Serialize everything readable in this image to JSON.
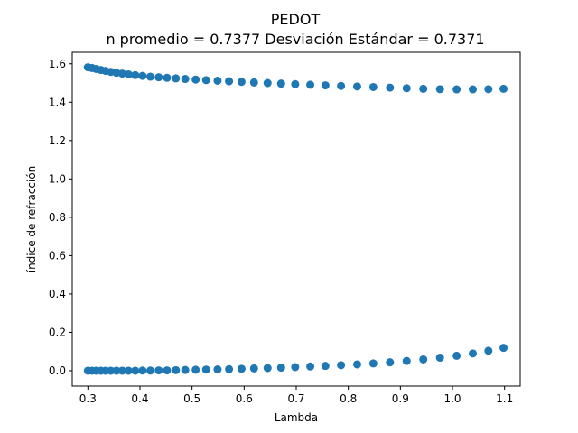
{
  "chart_data": {
    "type": "scatter",
    "title_line1": "PEDOT",
    "title_line2": "n promedio = 0.7377  Desviación Estándar = 0.7371",
    "xlabel": "Lambda",
    "ylabel": "índice de refracción",
    "xlim": [
      0.27,
      1.13
    ],
    "ylim": [
      -0.08,
      1.66
    ],
    "xticks": [
      0.3,
      0.4,
      0.5,
      0.6,
      0.7,
      0.8,
      0.9,
      1.0,
      1.1
    ],
    "xtick_labels": [
      "0.3",
      "0.4",
      "0.5",
      "0.6",
      "0.7",
      "0.8",
      "0.9",
      "1.0",
      "1.1"
    ],
    "yticks": [
      0.0,
      0.2,
      0.4,
      0.6,
      0.8,
      1.0,
      1.2,
      1.4,
      1.6
    ],
    "ytick_labels": [
      "0.0",
      "0.2",
      "0.4",
      "0.6",
      "0.8",
      "1.0",
      "1.2",
      "1.4",
      "1.6"
    ],
    "grid": false,
    "marker_color": "#1f77b4",
    "series": [
      {
        "x": [
          0.3,
          0.308,
          0.316,
          0.325,
          0.334,
          0.344,
          0.355,
          0.366,
          0.378,
          0.391,
          0.405,
          0.42,
          0.436,
          0.452,
          0.469,
          0.487,
          0.507,
          0.527,
          0.549,
          0.571,
          0.595,
          0.619,
          0.645,
          0.671,
          0.698,
          0.727,
          0.756,
          0.786,
          0.817,
          0.848,
          0.88,
          0.912,
          0.944,
          0.976,
          1.008,
          1.039,
          1.069,
          1.098
        ],
        "y": [
          1.582,
          1.578,
          1.573,
          1.568,
          1.563,
          1.558,
          1.553,
          1.549,
          1.545,
          1.541,
          1.537,
          1.533,
          1.53,
          1.527,
          1.524,
          1.521,
          1.518,
          1.515,
          1.512,
          1.509,
          1.506,
          1.503,
          1.5,
          1.497,
          1.494,
          1.491,
          1.488,
          1.485,
          1.482,
          1.479,
          1.476,
          1.473,
          1.47,
          1.468,
          1.467,
          1.467,
          1.468,
          1.47
        ]
      },
      {
        "x": [
          0.3,
          0.308,
          0.316,
          0.325,
          0.334,
          0.344,
          0.355,
          0.366,
          0.378,
          0.391,
          0.405,
          0.42,
          0.436,
          0.452,
          0.469,
          0.487,
          0.507,
          0.527,
          0.549,
          0.571,
          0.595,
          0.619,
          0.645,
          0.671,
          0.698,
          0.727,
          0.756,
          0.786,
          0.817,
          0.848,
          0.88,
          0.912,
          0.944,
          0.976,
          1.008,
          1.039,
          1.069,
          1.098
        ],
        "y": [
          0.0,
          0.0,
          0.0,
          0.0,
          0.0,
          0.0,
          0.0,
          0.0,
          0.0,
          0.0,
          0.001,
          0.001,
          0.002,
          0.002,
          0.003,
          0.004,
          0.005,
          0.006,
          0.007,
          0.008,
          0.01,
          0.012,
          0.014,
          0.016,
          0.019,
          0.022,
          0.025,
          0.029,
          0.033,
          0.038,
          0.044,
          0.051,
          0.059,
          0.068,
          0.078,
          0.09,
          0.104,
          0.119
        ]
      }
    ]
  }
}
